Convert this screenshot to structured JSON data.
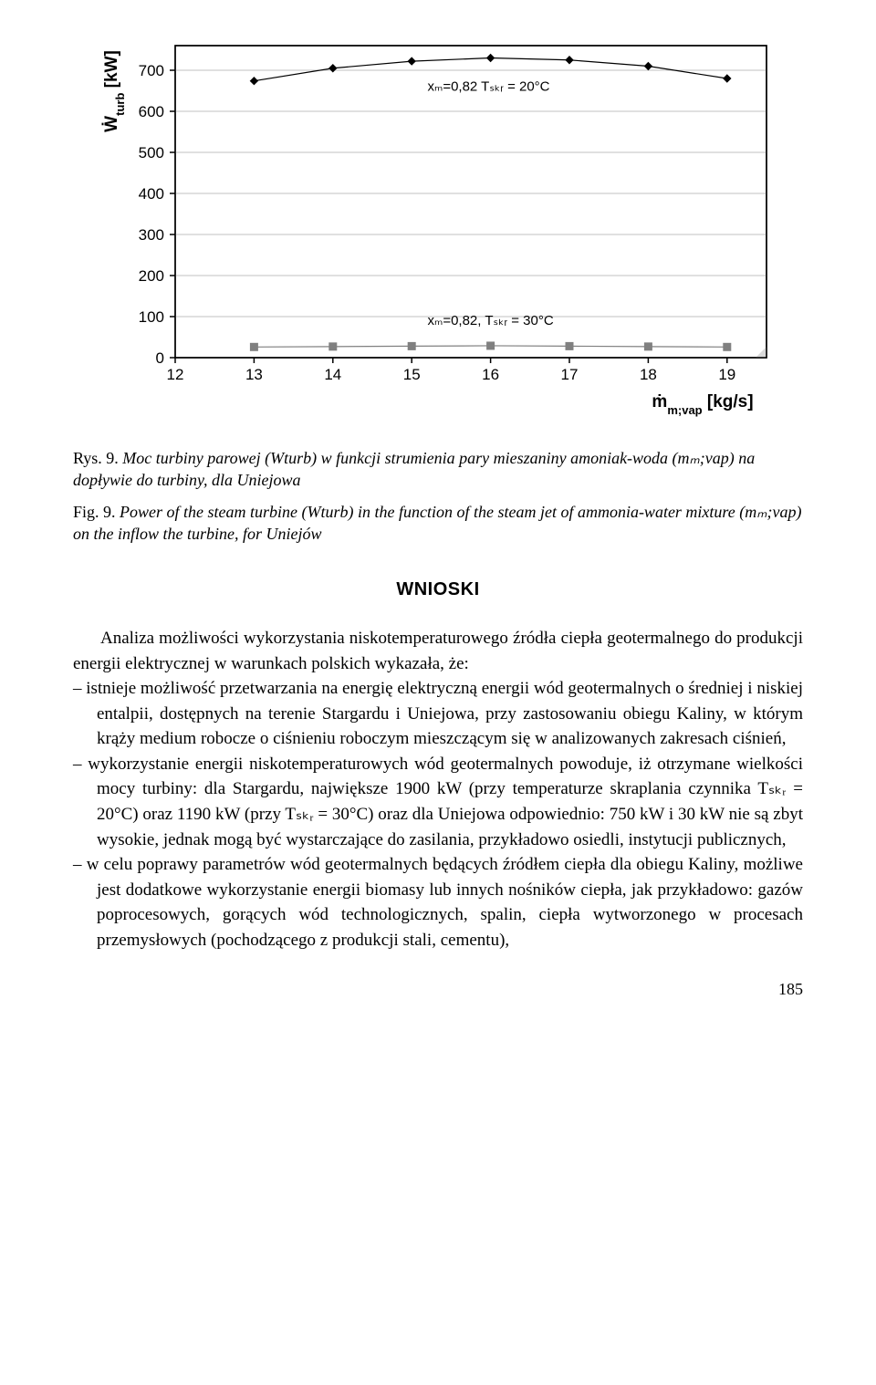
{
  "chart": {
    "type": "line",
    "background_color": "#ffffff",
    "plot_border_color": "#000000",
    "grid_color": "#c0c0c0",
    "canvas_bottom_right_fill": "#d9d9d9",
    "font_family": "Arial, sans-serif",
    "xlabel_html": "ṁ<tspan baseline-shift='sub' font-size='13'>m;vap</tspan> [kg/s]",
    "ylabel_html": "Ẇ<tspan baseline-shift='sub' font-size='13'>turb</tspan> [kW]",
    "axis_label_fontsize": 19,
    "tick_fontsize": 17,
    "xlim": [
      12,
      19.5
    ],
    "ylim": [
      0,
      760
    ],
    "xticks": [
      12,
      13,
      14,
      15,
      16,
      17,
      18,
      19
    ],
    "yticks": [
      0,
      100,
      200,
      300,
      400,
      500,
      600,
      700
    ],
    "series": [
      {
        "name": "T20",
        "marker": "diamond",
        "color": "#000000",
        "line_width": 1.2,
        "marker_size": 8,
        "x": [
          13,
          14,
          15,
          16,
          17,
          18,
          19
        ],
        "y": [
          674,
          705,
          722,
          730,
          725,
          710,
          680
        ],
        "annotation": "xₘ=0,82 Tₛₖᵣ = 20°C",
        "annotation_pos": [
          15.2,
          650
        ]
      },
      {
        "name": "T30",
        "marker": "square",
        "color": "#808080",
        "line_width": 1.2,
        "marker_size": 8,
        "x": [
          13,
          14,
          15,
          16,
          17,
          18,
          19
        ],
        "y": [
          26,
          27,
          28,
          29,
          28,
          27,
          26
        ],
        "annotation": "xₘ=0,82, Tₛₖᵣ = 30°C",
        "annotation_pos": [
          15.2,
          80
        ]
      }
    ]
  },
  "caption1_label": "Rys. 9. ",
  "caption1_rest": "Moc turbiny parowej (Wturb) w funkcji strumienia pary mieszaniny amoniak-woda (mₘ;vap) na dopływie do turbiny, dla Uniejowa",
  "caption2_label": "Fig. 9. ",
  "caption2_rest": "Power of the steam turbine (Wturb) in the function of the steam jet of ammonia-water mixture (mₘ;vap) on the inflow the turbine, for Uniejów",
  "section_title": "WNIOSKI",
  "intro_text": "Analiza możliwości wykorzystania niskotemperaturowego źródła ciepła geotermalnego do produkcji energii elektrycznej w warunkach polskich wykazała, że:",
  "bullets": [
    "istnieje możliwość przetwarzania na energię elektryczną energii wód geotermalnych o średniej i niskiej entalpii, dostępnych na terenie Stargardu i Uniejowa, przy zastosowaniu obiegu Kaliny, w którym krąży medium robocze o ciśnieniu roboczym mieszczącym się w analizowanych zakresach ciśnień,",
    "wykorzystanie energii niskotemperaturowych wód geotermalnych powoduje, iż otrzymane wielkości mocy turbiny: dla Stargardu, największe 1900 kW (przy temperaturze skraplania czynnika Tₛₖᵣ = 20°C) oraz 1190 kW (przy Tₛₖᵣ = 30°C) oraz dla Uniejowa odpowiednio: 750 kW i 30 kW nie są zbyt wysokie, jednak mogą być wystarczające do zasilania, przykładowo osiedli, instytucji publicznych,",
    "w celu poprawy parametrów wód geotermalnych będących źródłem ciepła dla obiegu Kaliny, możliwe jest dodatkowe wykorzystanie energii biomasy lub innych nośników ciepła, jak przykładowo: gazów poprocesowych, gorących wód technologicznych, spalin, ciepła wytworzonego w procesach przemysłowych (pochodzącego z produkcji stali, cementu),"
  ],
  "page_number": "185"
}
